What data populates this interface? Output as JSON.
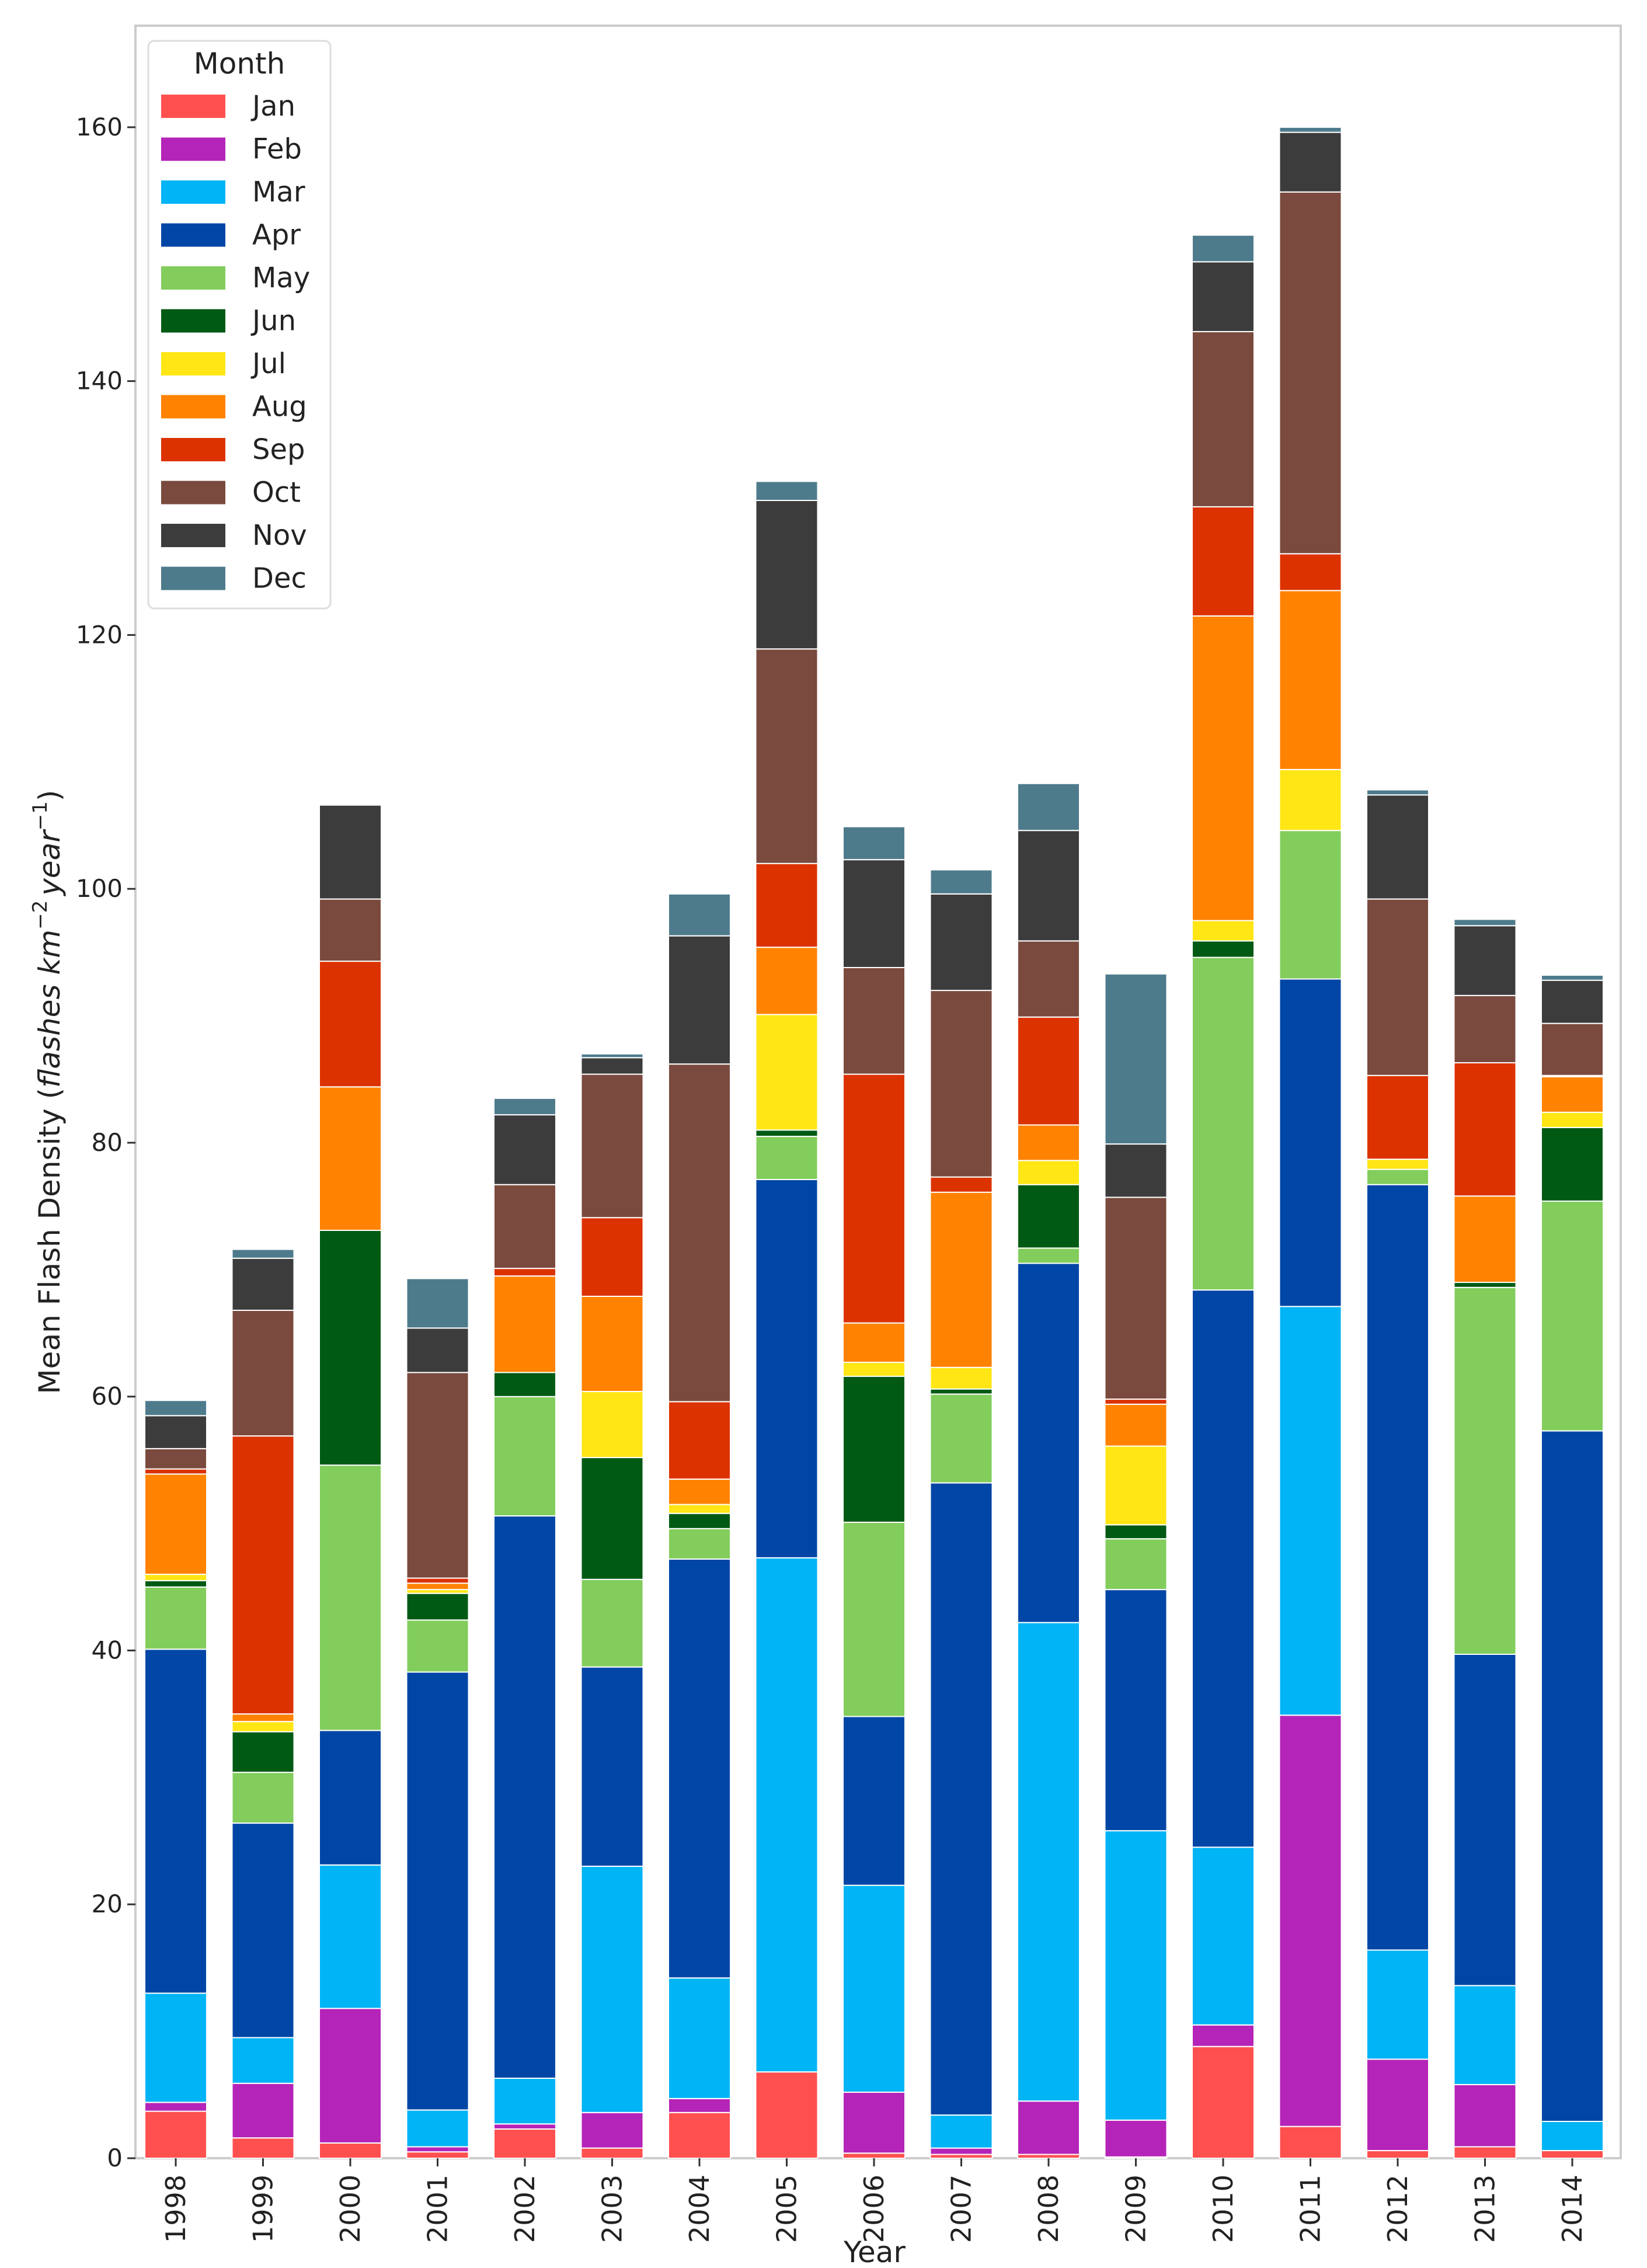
{
  "chart_data": {
    "type": "bar",
    "stacked": true,
    "title": "",
    "xlabel": "Year",
    "ylabel_prefix": "Mean Flash Density (",
    "ylabel_italic": "flashes km",
    "ylabel_sup1": "−2",
    "ylabel_italic2": "year",
    "ylabel_sup2": "−1",
    "ylabel_suffix": ")",
    "ylim": [
      0,
      168
    ],
    "yticks": [
      0,
      20,
      40,
      60,
      80,
      100,
      120,
      140,
      160
    ],
    "grid": false,
    "legend": {
      "title": "Month",
      "placement": "top-left"
    },
    "categories": [
      "1998",
      "1999",
      "2000",
      "2001",
      "2002",
      "2003",
      "2004",
      "2005",
      "2006",
      "2007",
      "2008",
      "2009",
      "2010",
      "2011",
      "2012",
      "2013",
      "2014"
    ],
    "series": [
      {
        "name": "Jan",
        "color": "#ff5050",
        "values": [
          3.7,
          1.6,
          1.2,
          0.5,
          2.3,
          0.8,
          3.6,
          6.8,
          0.4,
          0.3,
          0.3,
          0.1,
          8.8,
          2.5,
          0.6,
          0.9,
          0.6
        ]
      },
      {
        "name": "Feb",
        "color": "#b524b8",
        "values": [
          0.7,
          4.3,
          10.6,
          0.4,
          0.4,
          2.8,
          1.1,
          0.0,
          4.8,
          0.5,
          4.2,
          2.9,
          1.7,
          32.4,
          7.2,
          4.9,
          0.0
        ]
      },
      {
        "name": "Mar",
        "color": "#00b4f5",
        "values": [
          8.6,
          3.6,
          11.3,
          2.9,
          3.6,
          19.4,
          9.5,
          40.5,
          16.3,
          2.6,
          37.7,
          22.8,
          14.0,
          32.2,
          8.6,
          7.8,
          2.3
        ]
      },
      {
        "name": "Apr",
        "color": "#0046a6",
        "values": [
          27.1,
          16.9,
          10.6,
          34.5,
          44.3,
          15.7,
          33.0,
          29.8,
          13.3,
          49.8,
          28.3,
          19.0,
          43.9,
          25.8,
          60.3,
          26.1,
          54.4
        ]
      },
      {
        "name": "May",
        "color": "#82cd5c",
        "values": [
          4.9,
          4.0,
          20.9,
          4.1,
          9.4,
          6.9,
          2.4,
          3.4,
          15.3,
          7.0,
          1.2,
          4.0,
          26.2,
          11.7,
          1.2,
          28.9,
          18.1
        ]
      },
      {
        "name": "Jun",
        "color": "#005a14",
        "values": [
          0.5,
          3.2,
          18.5,
          2.1,
          1.9,
          9.6,
          1.2,
          0.5,
          11.5,
          0.4,
          5.0,
          1.1,
          1.3,
          0.0,
          0.0,
          0.4,
          5.8
        ]
      },
      {
        "name": "Jul",
        "color": "#ffe614",
        "values": [
          0.5,
          0.8,
          0.0,
          0.3,
          0.0,
          5.2,
          0.7,
          9.1,
          1.1,
          1.7,
          1.9,
          6.2,
          1.6,
          4.8,
          0.8,
          0.0,
          1.2
        ]
      },
      {
        "name": "Aug",
        "color": "#ff8200",
        "values": [
          7.9,
          0.6,
          11.3,
          0.5,
          7.6,
          7.5,
          2.0,
          5.3,
          3.1,
          13.8,
          2.8,
          3.3,
          24.0,
          14.1,
          0.0,
          6.8,
          2.8
        ]
      },
      {
        "name": "Sep",
        "color": "#dc3200",
        "values": [
          0.4,
          21.9,
          9.9,
          0.4,
          0.6,
          6.2,
          6.1,
          6.6,
          19.6,
          1.2,
          8.5,
          0.4,
          8.6,
          2.9,
          6.6,
          10.5,
          0.1
        ]
      },
      {
        "name": "Oct",
        "color": "#7a4a3e",
        "values": [
          1.6,
          9.9,
          4.9,
          16.2,
          6.6,
          11.3,
          26.6,
          16.9,
          8.4,
          14.7,
          6.0,
          15.9,
          13.8,
          28.5,
          13.9,
          5.3,
          4.1
        ]
      },
      {
        "name": "Nov",
        "color": "#3c3c3c",
        "values": [
          2.6,
          4.1,
          7.4,
          3.5,
          5.5,
          1.3,
          10.1,
          11.7,
          8.5,
          7.6,
          8.7,
          4.2,
          5.5,
          4.7,
          8.2,
          5.5,
          3.4
        ]
      },
      {
        "name": "Dec",
        "color": "#4e7b8c",
        "values": [
          1.2,
          0.7,
          0.0,
          3.9,
          1.3,
          0.3,
          3.3,
          1.5,
          2.6,
          1.9,
          3.7,
          13.4,
          2.1,
          0.4,
          0.4,
          0.5,
          0.4
        ]
      }
    ]
  }
}
